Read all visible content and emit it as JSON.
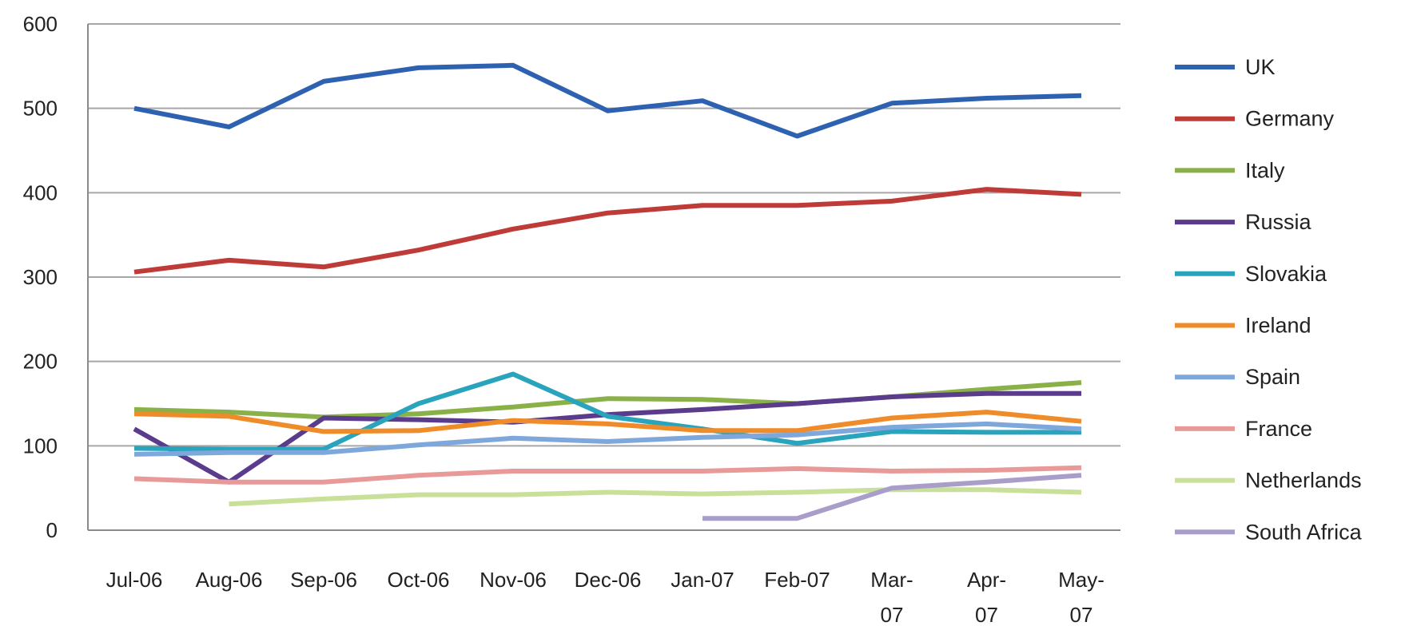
{
  "chart_data": {
    "type": "line",
    "title": "",
    "xlabel": "",
    "ylabel": "",
    "categories": [
      "Jul-06",
      "Aug-06",
      "Sep-06",
      "Oct-06",
      "Nov-06",
      "Dec-06",
      "Jan-07",
      "Feb-07",
      "Mar-07",
      "Apr-07",
      "May-07"
    ],
    "ylim": [
      0,
      600
    ],
    "yticks": [
      0,
      100,
      200,
      300,
      400,
      500,
      600
    ],
    "grid": true,
    "legend_position": "right",
    "series": [
      {
        "name": "UK",
        "color": "#2E62B0",
        "values": [
          500,
          478,
          532,
          548,
          551,
          497,
          509,
          467,
          506,
          512,
          515
        ]
      },
      {
        "name": "Germany",
        "color": "#BF3B38",
        "values": [
          306,
          320,
          312,
          332,
          357,
          376,
          385,
          385,
          390,
          404,
          398
        ]
      },
      {
        "name": "Italy",
        "color": "#8AB148",
        "values": [
          143,
          140,
          134,
          138,
          146,
          156,
          155,
          150,
          158,
          167,
          175
        ]
      },
      {
        "name": "Russia",
        "color": "#5A3B8C",
        "values": [
          120,
          57,
          133,
          131,
          128,
          137,
          143,
          150,
          158,
          162,
          162
        ]
      },
      {
        "name": "Slovakia",
        "color": "#2AA4BD",
        "values": [
          97,
          96,
          96,
          150,
          185,
          135,
          120,
          103,
          117,
          116,
          116
        ]
      },
      {
        "name": "Ireland",
        "color": "#F08B2A",
        "values": [
          138,
          135,
          117,
          118,
          130,
          126,
          118,
          118,
          133,
          140,
          129
        ]
      },
      {
        "name": "Spain",
        "color": "#7EA8DC",
        "values": [
          90,
          92,
          92,
          101,
          109,
          105,
          110,
          113,
          122,
          126,
          120
        ]
      },
      {
        "name": "France",
        "color": "#E89A99",
        "values": [
          61,
          57,
          57,
          65,
          70,
          70,
          70,
          73,
          70,
          71,
          74
        ]
      },
      {
        "name": "Netherlands",
        "color": "#C8E09A",
        "values": [
          null,
          31,
          37,
          42,
          42,
          45,
          43,
          45,
          48,
          48,
          45
        ]
      },
      {
        "name": "South Africa",
        "color": "#A99DC9",
        "values": [
          null,
          null,
          null,
          null,
          null,
          null,
          14,
          14,
          50,
          57,
          65
        ]
      }
    ]
  }
}
